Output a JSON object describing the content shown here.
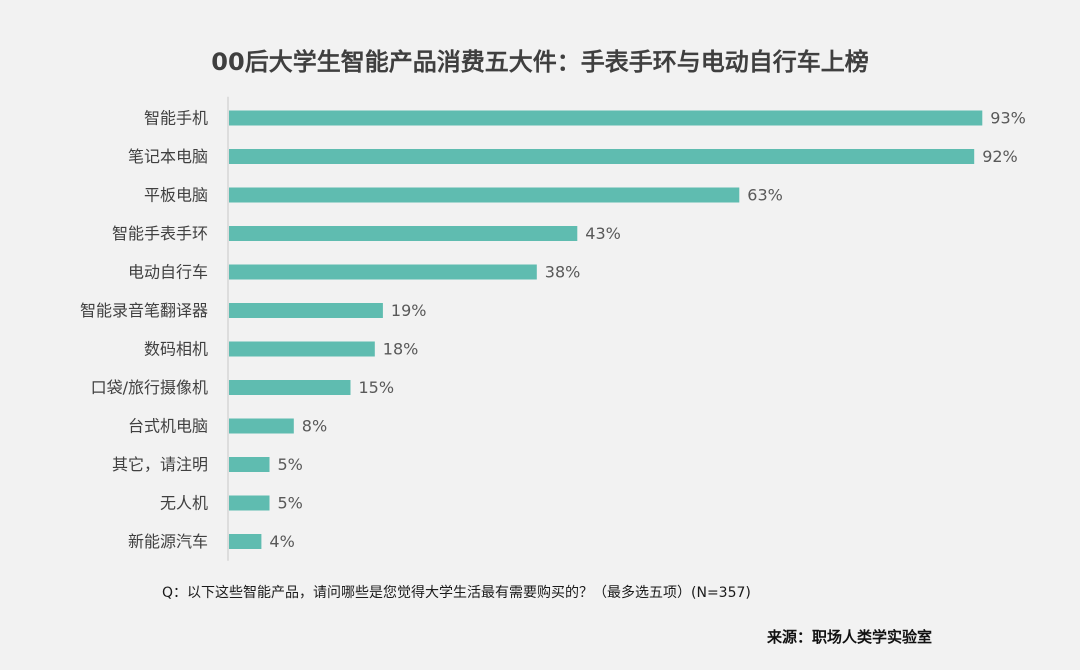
{
  "chart_data": {
    "type": "bar",
    "orientation": "horizontal",
    "title": "00后大学生智能产品消费五大件：手表手环与电动自行车上榜",
    "categories": [
      "智能手机",
      "笔记本电脑",
      "平板电脑",
      "智能手表手环",
      "电动自行车",
      "智能录音笔翻译器",
      "数码相机",
      "口袋/旅行摄像机",
      "台式机电脑",
      "其它，请注明",
      "无人机",
      "新能源汽车"
    ],
    "values": [
      93,
      92,
      63,
      43,
      38,
      19,
      18,
      15,
      8,
      5,
      5,
      4
    ],
    "value_labels": [
      "93%",
      "92%",
      "63%",
      "43%",
      "38%",
      "19%",
      "18%",
      "15%",
      "8%",
      "5%",
      "5%",
      "4%"
    ],
    "unit": "%",
    "xlim": [
      0,
      100
    ],
    "grid": false,
    "colors": {
      "bar": "#5fbcb0",
      "axis": "#c8c8c8",
      "label": "#404040",
      "value_label": "#595959"
    }
  },
  "footer": {
    "question": "Q：以下这些智能产品，请问哪些是您觉得大学生活最有需要购买的？（最多选五项）(N=357)",
    "source": "来源：职场人类学实验室"
  }
}
